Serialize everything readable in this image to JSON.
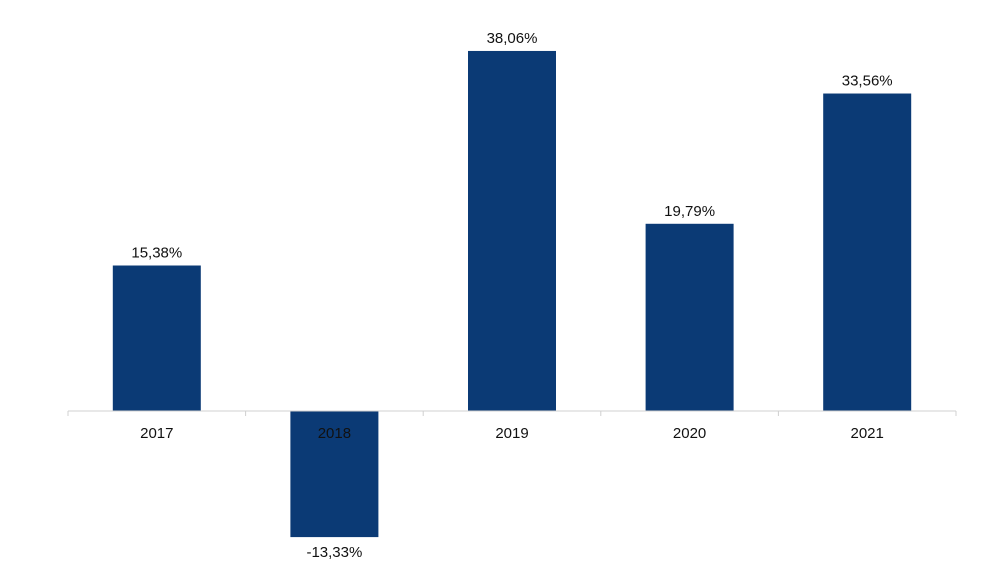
{
  "chart_data": {
    "type": "bar",
    "categories": [
      "2017",
      "2018",
      "2019",
      "2020",
      "2021"
    ],
    "values": [
      15.38,
      -13.33,
      38.06,
      19.79,
      33.56
    ],
    "data_labels": [
      "15,38%",
      "-13,33%",
      "38,06%",
      "19,79%",
      "33,56%"
    ],
    "title": "",
    "xlabel": "",
    "ylabel": "",
    "ylim": [
      -15,
      40
    ],
    "grid": false,
    "legend": "none",
    "bar_color": "#0b3a75",
    "axis_color": "#d0d0d0"
  }
}
